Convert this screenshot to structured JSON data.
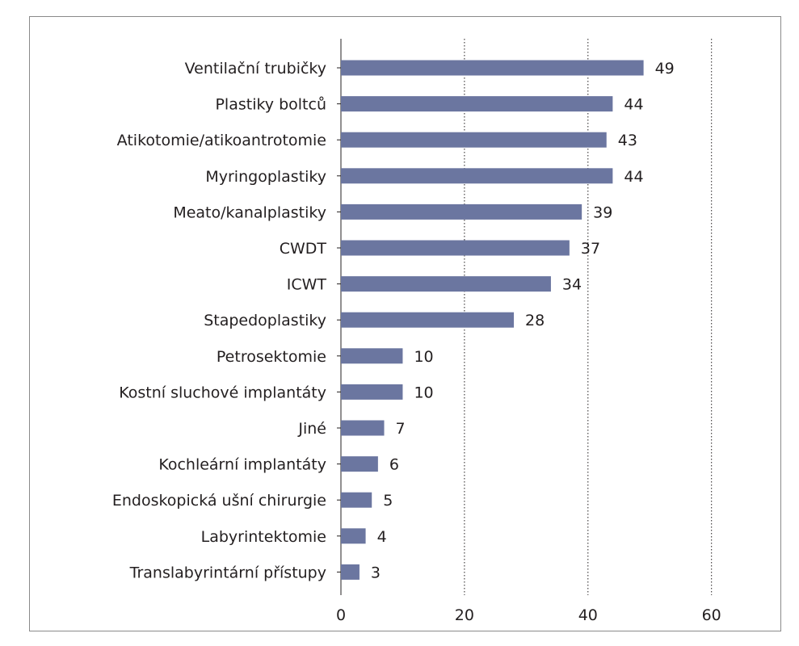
{
  "chart_data": {
    "type": "bar",
    "orientation": "horizontal",
    "categories": [
      "Ventilační trubičky",
      "Plastiky boltců",
      "Atikotomie/atikoantrotomie",
      "Myringoplastiky",
      "Meato/kanalplastiky",
      "CWDT",
      "ICWT",
      "Stapedoplastiky",
      "Petrosektomie",
      "Kostní sluchové implantáty",
      "Jiné",
      "Kochleární implantáty",
      "Endoskopická ušní chirurgie",
      "Labyrintektomie",
      "Translabyrintární přístupy"
    ],
    "values": [
      49,
      44,
      43,
      44,
      39,
      37,
      34,
      28,
      10,
      10,
      7,
      6,
      5,
      4,
      3
    ],
    "xlim": [
      0,
      60
    ],
    "xticks": [
      0,
      20,
      40,
      60
    ],
    "grid": "vertical dotted",
    "bar_color": "#6b76a0",
    "title": "",
    "xlabel": "",
    "ylabel": ""
  }
}
